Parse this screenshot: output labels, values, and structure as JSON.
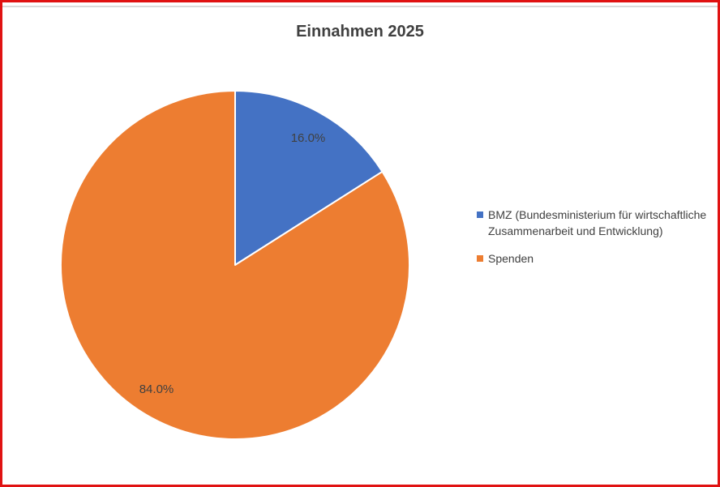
{
  "frame": {
    "border_color": "#e01212",
    "top_rule_color": "#dadada",
    "background": "#ffffff"
  },
  "chart_data": {
    "type": "pie",
    "title": "Einnahmen 2025",
    "start_angle_deg": 0,
    "direction": "clockwise",
    "legend_position": "right",
    "slices": [
      {
        "label": "BMZ (Bundesministerium für wirtschaftliche Zusammenarbeit und Entwicklung)",
        "value": 16.0,
        "data_label": "16.0%",
        "color": "#4472c4"
      },
      {
        "label": "Spenden",
        "value": 84.0,
        "data_label": "84.0%",
        "color": "#ed7d31"
      }
    ],
    "colors": {
      "title_text": "#404040",
      "label_text": "#404040",
      "legend_text": "#404040",
      "slice_border": "#ffffff"
    }
  }
}
